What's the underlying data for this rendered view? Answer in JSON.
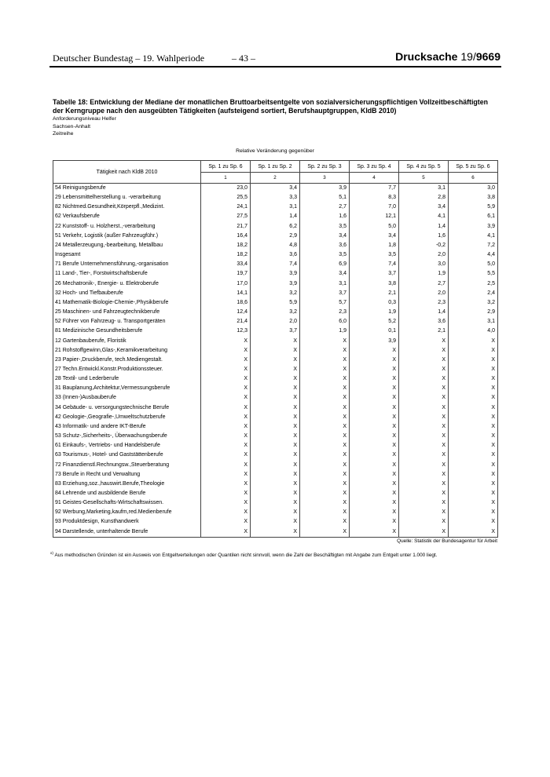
{
  "page_header": {
    "left": "Deutscher Bundestag – 19. Wahlperiode",
    "center": "– 43 –",
    "doc_label": "Drucksache ",
    "doc_series": "19/",
    "doc_number": "9669"
  },
  "title": {
    "line1": "Tabelle 18: Entwicklung der Mediane der monatlichen Bruttoarbeitsentgelte von sozialversicherungspflichtigen Vollzeitbeschäftigten",
    "line2": "der Kerngruppe nach den ausgeübten Tätigkeiten (aufsteigend sortiert, Berufshauptgruppen, KldB 2010)",
    "subline1": "Anforderungsniveau Helfer",
    "subline2": "Sachsen-Anhalt",
    "subline3": "Zeitreihe"
  },
  "table": {
    "caption": "Relative Veränderung gegenüber",
    "first_col_header": "Tätigkeit nach KldB 2010",
    "col_headers": [
      "Sp. 1 zu Sp. 6",
      "Sp. 1 zu Sp. 2",
      "Sp. 2 zu Sp. 3",
      "Sp. 3 zu Sp. 4",
      "Sp. 4 zu Sp. 5",
      "Sp. 5 zu Sp. 6"
    ],
    "col_numbers": [
      "1",
      "2",
      "3",
      "4",
      "5",
      "6"
    ],
    "rows": [
      {
        "label": "54 Reinigungsberufe",
        "values": [
          "23,0",
          "3,4",
          "3,9",
          "7,7",
          "3,1",
          "3,0"
        ]
      },
      {
        "label": "29 Lebensmittelherstellung u. -verarbeitung",
        "values": [
          "25,5",
          "3,3",
          "5,1",
          "8,3",
          "2,8",
          "3,8"
        ]
      },
      {
        "label": "82 Nichtmed.Gesundheit,Körperpfl.,Medizint.",
        "values": [
          "24,1",
          "3,1",
          "2,7",
          "7,0",
          "3,4",
          "5,9"
        ]
      },
      {
        "label": "62 Verkaufsberufe",
        "values": [
          "27,5",
          "1,4",
          "1,6",
          "12,1",
          "4,1",
          "6,1"
        ]
      },
      {
        "label": "22 Kunststoff- u. Holzherst.,-verarbeitung",
        "values": [
          "21,7",
          "6,2",
          "3,5",
          "5,0",
          "1,4",
          "3,9"
        ]
      },
      {
        "label": "51 Verkehr, Logistik (außer Fahrzeugführ.)",
        "values": [
          "16,4",
          "2,9",
          "3,4",
          "3,4",
          "1,6",
          "4,1"
        ]
      },
      {
        "label": "24 Metallerzeugung,-bearbeitung, Metallbau",
        "values": [
          "18,2",
          "4,8",
          "3,6",
          "1,8",
          "-0,2",
          "7,2"
        ]
      },
      {
        "label": "Insgesamt",
        "values": [
          "18,2",
          "3,6",
          "3,5",
          "3,5",
          "2,0",
          "4,4"
        ]
      },
      {
        "label": "71 Berufe Unternehmensführung,-organisation",
        "values": [
          "33,4",
          "7,4",
          "6,9",
          "7,4",
          "3,0",
          "5,0"
        ]
      },
      {
        "label": "11 Land-, Tier-, Forstwirtschaftsberufe",
        "values": [
          "19,7",
          "3,9",
          "3,4",
          "3,7",
          "1,9",
          "5,5"
        ]
      },
      {
        "label": "26 Mechatronik-, Energie- u. Elektroberufe",
        "values": [
          "17,0",
          "3,9",
          "3,1",
          "3,8",
          "2,7",
          "2,5"
        ]
      },
      {
        "label": "32 Hoch- und Tiefbauberufe",
        "values": [
          "14,1",
          "3,2",
          "3,7",
          "2,1",
          "2,0",
          "2,4"
        ]
      },
      {
        "label": "41 Mathematik-Biologie-Chemie-,Physikberufe",
        "values": [
          "18,6",
          "5,9",
          "5,7",
          "0,3",
          "2,3",
          "3,2"
        ]
      },
      {
        "label": "25 Maschinen- und Fahrzeugtechnikberufe",
        "values": [
          "12,4",
          "3,2",
          "2,3",
          "1,9",
          "1,4",
          "2,9"
        ]
      },
      {
        "label": "52 Führer von Fahrzeug- u. Transportgeräten",
        "values": [
          "21,4",
          "2,0",
          "6,0",
          "5,2",
          "3,6",
          "3,1"
        ]
      },
      {
        "label": "81 Medizinische Gesundheitsberufe",
        "values": [
          "12,3",
          "3,7",
          "1,9",
          "0,1",
          "2,1",
          "4,0"
        ]
      },
      {
        "label": "12 Gartenbauberufe, Floristik",
        "values": [
          "X",
          "X",
          "X",
          "3,9",
          "X",
          "X"
        ]
      },
      {
        "label": "21 Rohstoffgewinn,Glas-,Keramikverarbeitung",
        "values": [
          "X",
          "X",
          "X",
          "X",
          "X",
          "X"
        ]
      },
      {
        "label": "23 Papier-,Druckberufe, tech.Mediengestalt.",
        "values": [
          "X",
          "X",
          "X",
          "X",
          "X",
          "X"
        ]
      },
      {
        "label": "27 Techn.Entwickl.Konstr.Produktionssteuer.",
        "values": [
          "X",
          "X",
          "X",
          "X",
          "X",
          "X"
        ]
      },
      {
        "label": "28 Textil- und Lederberufe",
        "values": [
          "X",
          "X",
          "X",
          "X",
          "X",
          "X"
        ]
      },
      {
        "label": "31 Bauplanung,Architektur,Vermessungsberufe",
        "values": [
          "X",
          "X",
          "X",
          "X",
          "X",
          "X"
        ]
      },
      {
        "label": "33 (Innen-)Ausbauberufe",
        "values": [
          "X",
          "X",
          "X",
          "X",
          "X",
          "X"
        ]
      },
      {
        "label": "34 Gebäude- u. versorgungstechnische Berufe",
        "values": [
          "X",
          "X",
          "X",
          "X",
          "X",
          "X"
        ]
      },
      {
        "label": "42 Geologie-,Geografie-,Umweltschutzberufe",
        "values": [
          "X",
          "X",
          "X",
          "X",
          "X",
          "X"
        ]
      },
      {
        "label": "43 Informatik- und andere IKT-Berufe",
        "values": [
          "X",
          "X",
          "X",
          "X",
          "X",
          "X"
        ]
      },
      {
        "label": "53 Schutz-,Sicherheits-, Überwachungsberufe",
        "values": [
          "X",
          "X",
          "X",
          "X",
          "X",
          "X"
        ]
      },
      {
        "label": "61 Einkaufs-, Vertriebs- und Handelsberufe",
        "values": [
          "X",
          "X",
          "X",
          "X",
          "X",
          "X"
        ]
      },
      {
        "label": "63 Tourismus-, Hotel- und Gaststättenberufe",
        "values": [
          "X",
          "X",
          "X",
          "X",
          "X",
          "X"
        ]
      },
      {
        "label": "72 Finanzdienstl.Rechnungsw.,Steuerberatung",
        "values": [
          "X",
          "X",
          "X",
          "X",
          "X",
          "X"
        ]
      },
      {
        "label": "73 Berufe in Recht und Verwaltung",
        "values": [
          "X",
          "X",
          "X",
          "X",
          "X",
          "X"
        ]
      },
      {
        "label": "83 Erziehung,soz.,hauswirt.Berufe,Theologie",
        "values": [
          "X",
          "X",
          "X",
          "X",
          "X",
          "X"
        ]
      },
      {
        "label": "84 Lehrende und ausbildende Berufe",
        "values": [
          "X",
          "X",
          "X",
          "X",
          "X",
          "X"
        ]
      },
      {
        "label": "91 Geistes-Gesellschafts-Wirtschaftswissen.",
        "values": [
          "X",
          "X",
          "X",
          "X",
          "X",
          "X"
        ]
      },
      {
        "label": "92 Werbung,Marketing,kaufm,red.Medienberufe",
        "values": [
          "X",
          "X",
          "X",
          "X",
          "X",
          "X"
        ]
      },
      {
        "label": "93 Produktdesign, Kunsthandwerk",
        "values": [
          "X",
          "X",
          "X",
          "X",
          "X",
          "X"
        ]
      },
      {
        "label": "94 Darstellende, unterhaltende Berufe",
        "values": [
          "X",
          "X",
          "X",
          "X",
          "X",
          "X"
        ]
      }
    ],
    "source": "Quelle: Statistik der Bundesagentur für Arbeit"
  },
  "footnote": {
    "marker": "x)",
    "text": "Aus methodischen Gründen ist ein Ausweis von Entgeltverteilungen oder Quantilen nicht sinnvoll, wenn die Zahl der Beschäftigten mit Angabe zum Entgelt unter 1.000 liegt."
  }
}
